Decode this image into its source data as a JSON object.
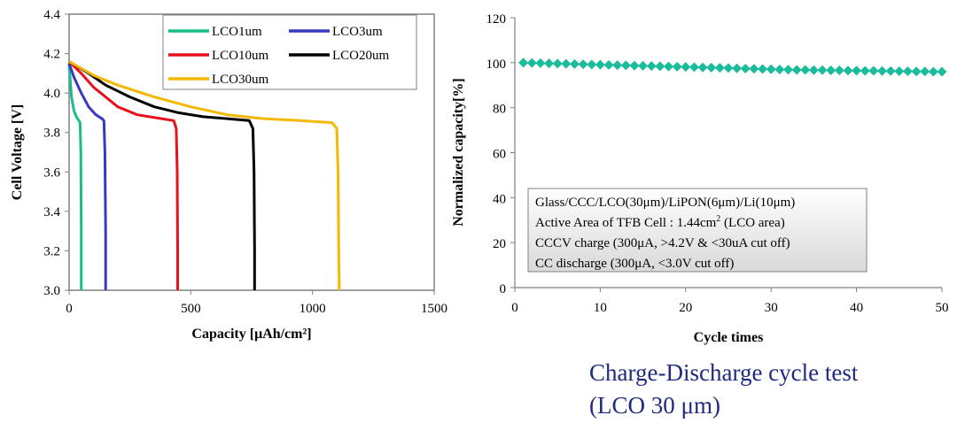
{
  "chart_data": [
    {
      "type": "line",
      "xlabel": "Capacity [μAh/cm²]",
      "ylabel": "Cell Voltage [V]",
      "xlim": [
        0,
        1500
      ],
      "ylim": [
        3.0,
        4.4
      ],
      "x_ticks": [
        "0",
        "500",
        "1000",
        "1500"
      ],
      "y_ticks": [
        "3.0",
        "3.2",
        "3.4",
        "3.6",
        "3.8",
        "4.0",
        "4.2",
        "4.4"
      ],
      "legend_position": "top-right",
      "grid": false,
      "series": [
        {
          "name": "LCO1um",
          "color": "#1abc8c",
          "points": [
            [
              0,
              4.15
            ],
            [
              5,
              4.06
            ],
            [
              10,
              3.98
            ],
            [
              20,
              3.91
            ],
            [
              30,
              3.88
            ],
            [
              40,
              3.86
            ],
            [
              45,
              3.85
            ],
            [
              48,
              3.7
            ],
            [
              50,
              3.3
            ],
            [
              50,
              3.0
            ]
          ]
        },
        {
          "name": "LCO3um",
          "color": "#3838c0",
          "points": [
            [
              0,
              4.15
            ],
            [
              20,
              4.08
            ],
            [
              50,
              4.0
            ],
            [
              80,
              3.93
            ],
            [
              110,
              3.89
            ],
            [
              135,
              3.87
            ],
            [
              143,
              3.86
            ],
            [
              147,
              3.7
            ],
            [
              150,
              3.3
            ],
            [
              150,
              3.0
            ]
          ]
        },
        {
          "name": "LCO10um",
          "color": "#e8101a",
          "points": [
            [
              0,
              4.16
            ],
            [
              50,
              4.1
            ],
            [
              100,
              4.03
            ],
            [
              150,
              3.98
            ],
            [
              200,
              3.93
            ],
            [
              280,
              3.89
            ],
            [
              380,
              3.87
            ],
            [
              430,
              3.86
            ],
            [
              440,
              3.82
            ],
            [
              444,
              3.6
            ],
            [
              446,
              3.2
            ],
            [
              446,
              3.0
            ]
          ]
        },
        {
          "name": "LCO20um",
          "color": "#000000",
          "points": [
            [
              0,
              4.16
            ],
            [
              80,
              4.1
            ],
            [
              150,
              4.04
            ],
            [
              250,
              3.98
            ],
            [
              350,
              3.93
            ],
            [
              450,
              3.9
            ],
            [
              550,
              3.88
            ],
            [
              650,
              3.87
            ],
            [
              740,
              3.86
            ],
            [
              755,
              3.82
            ],
            [
              760,
              3.6
            ],
            [
              762,
              3.2
            ],
            [
              762,
              3.0
            ]
          ]
        },
        {
          "name": "LCO30um",
          "color": "#f5b800",
          "points": [
            [
              0,
              4.16
            ],
            [
              100,
              4.09
            ],
            [
              200,
              4.04
            ],
            [
              350,
              3.98
            ],
            [
              500,
              3.93
            ],
            [
              650,
              3.89
            ],
            [
              800,
              3.87
            ],
            [
              950,
              3.86
            ],
            [
              1080,
              3.85
            ],
            [
              1100,
              3.82
            ],
            [
              1105,
              3.6
            ],
            [
              1108,
              3.2
            ],
            [
              1110,
              3.0
            ]
          ]
        }
      ]
    },
    {
      "type": "scatter",
      "xlabel": "Cycle times",
      "ylabel": "Normalized capacity[%]",
      "xlim": [
        0,
        50
      ],
      "ylim": [
        0,
        120
      ],
      "x_ticks": [
        "0",
        "10",
        "20",
        "30",
        "40",
        "50"
      ],
      "y_ticks": [
        "0",
        "20",
        "40",
        "60",
        "80",
        "100",
        "120"
      ],
      "grid": false,
      "series": [
        {
          "marker": "diamond",
          "color": "#1abc9c",
          "x": [
            1,
            2,
            3,
            4,
            5,
            6,
            7,
            8,
            9,
            10,
            11,
            12,
            13,
            14,
            15,
            16,
            17,
            18,
            19,
            20,
            21,
            22,
            23,
            24,
            25,
            26,
            27,
            28,
            29,
            30,
            31,
            32,
            33,
            34,
            35,
            36,
            37,
            38,
            39,
            40,
            41,
            42,
            43,
            44,
            45,
            46,
            47,
            48,
            49,
            50
          ],
          "y": [
            100,
            99.9,
            99.8,
            99.7,
            99.6,
            99.5,
            99.4,
            99.3,
            99.2,
            99.1,
            99.0,
            98.9,
            98.8,
            98.7,
            98.6,
            98.5,
            98.4,
            98.3,
            98.2,
            98.1,
            98.0,
            97.9,
            97.8,
            97.7,
            97.6,
            97.5,
            97.4,
            97.3,
            97.2,
            97.1,
            97.0,
            96.9,
            96.8,
            96.8,
            96.7,
            96.7,
            96.6,
            96.6,
            96.5,
            96.5,
            96.4,
            96.4,
            96.3,
            96.3,
            96.2,
            96.2,
            96.1,
            96.1,
            96.0,
            96.0
          ]
        }
      ]
    }
  ],
  "info_box": {
    "line1": "Glass/CCC/LCO(30μm)/LiPON(6μm)/Li(10μm)",
    "line2_main": "Active Area of TFB Cell : 1.44cm",
    "line2_sup": "2",
    "line2_tail": " (LCO area)",
    "line3": "CCCV charge (300μA, >4.2V & <30uA cut off)",
    "line4": "CC discharge (300μA, <3.0V cut off)"
  },
  "caption": {
    "line1": "Charge-Discharge cycle test",
    "line2": "(LCO 30 μm)"
  }
}
